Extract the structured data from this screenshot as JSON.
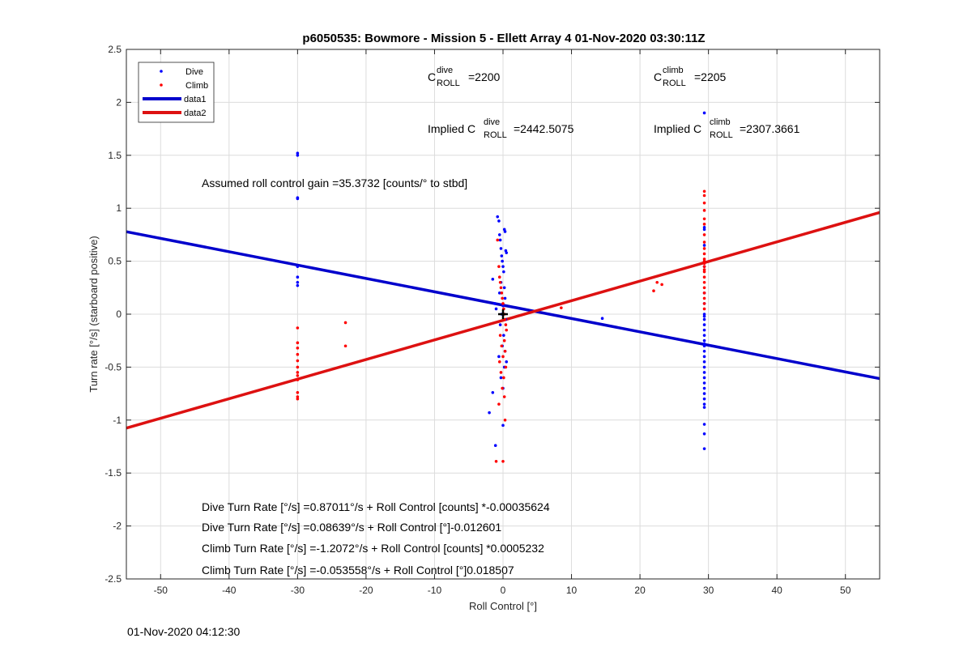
{
  "chart_data": {
    "type": "scatter",
    "title": "p6050535: Bowmore - Mission 5 - Ellett Array 4 01-Nov-2020 03:30:11Z",
    "xlabel": "Roll Control [°]",
    "ylabel": "Turn rate [°/s] (starboard positive)",
    "xlim": [
      -55,
      55
    ],
    "ylim": [
      -2.5,
      2.5
    ],
    "xticks": [
      -50,
      -40,
      -30,
      -20,
      -10,
      0,
      10,
      20,
      30,
      40,
      50
    ],
    "yticks": [
      2.5,
      2,
      1.5,
      1,
      0.5,
      0,
      -0.5,
      -1,
      -1.5,
      -2,
      -2.5
    ],
    "grid": true,
    "legend_position": "top-left",
    "legend": [
      "Dive",
      "Climb",
      "data1",
      "data2"
    ],
    "colors": {
      "dive": "#0000ff",
      "climb": "#ff0000",
      "data1": "#0000cc",
      "data2": "#dd1111"
    },
    "series": [
      {
        "name": "Dive",
        "kind": "points",
        "x": [
          -30,
          -30,
          -30,
          -30,
          -30,
          -30,
          -30,
          -30,
          -1.5,
          -1.2,
          -1.0,
          -0.8,
          -0.6,
          -0.5,
          -0.4,
          -0.3,
          -0.2,
          -0.1,
          0.0,
          0.1,
          0.2,
          0.3,
          0.4,
          0.5,
          -0.3,
          0.2,
          -0.5,
          0.3,
          0.0,
          -0.2,
          0.4,
          -0.4,
          0.1,
          -0.1,
          0.3,
          -0.6,
          0.5,
          0.2,
          -0.3,
          0.0,
          -1.5,
          -2.0,
          -1.1,
          0.0,
          14.5,
          29.4,
          29.4,
          29.4,
          29.4,
          29.4,
          29.4,
          29.4,
          29.4,
          29.4,
          29.4,
          29.4,
          29.4,
          29.4,
          29.4,
          29.4,
          29.4,
          29.4,
          29.4,
          29.4,
          29.4,
          29.4,
          29.4,
          29.4,
          29.4,
          29.4,
          29.4,
          29.4,
          29.4,
          29.4,
          29.4,
          29.4
        ],
        "y": [
          1.52,
          1.5,
          1.1,
          1.09,
          0.45,
          0.35,
          0.3,
          0.27,
          0.33,
          0.1,
          0.05,
          0.92,
          0.88,
          0.75,
          0.7,
          0.62,
          0.55,
          0.5,
          0.45,
          0.4,
          0.8,
          0.78,
          0.6,
          0.58,
          0.3,
          0.25,
          0.2,
          0.15,
          0.08,
          0.0,
          -0.05,
          -0.1,
          -0.2,
          -0.3,
          -0.35,
          -0.4,
          -0.45,
          -0.5,
          -0.6,
          -0.7,
          -0.74,
          -0.93,
          -1.24,
          -1.05,
          -0.04,
          1.9,
          0.82,
          0.8,
          0.65,
          0.45,
          0.2,
          0.0,
          -0.05,
          -0.1,
          -0.15,
          -0.2,
          -0.25,
          -0.3,
          -0.35,
          -0.4,
          -0.45,
          -0.5,
          -0.55,
          -0.6,
          -0.65,
          -0.7,
          -0.75,
          -0.8,
          -0.85,
          -0.88,
          -1.04,
          -1.13,
          -1.27,
          0.1,
          -0.02,
          -0.28
        ]
      },
      {
        "name": "Climb",
        "kind": "points",
        "x": [
          -30,
          -30,
          -30,
          -30,
          -30,
          -30,
          -30,
          -30,
          -30,
          -30,
          -30,
          -30,
          -23,
          -23,
          -0.8,
          -0.6,
          -0.5,
          -0.4,
          -0.3,
          -0.2,
          -0.1,
          0.0,
          0.1,
          0.2,
          0.3,
          0.4,
          0.5,
          -0.4,
          0.2,
          -0.2,
          0.3,
          0.0,
          -0.5,
          0.4,
          -0.3,
          0.1,
          -0.1,
          0.2,
          -0.6,
          0.3,
          -1.0,
          0.0,
          8.5,
          22.0,
          22.5,
          23.2,
          29.4,
          29.4,
          29.4,
          29.4,
          29.4,
          29.4,
          29.4,
          29.4,
          29.4,
          29.4,
          29.4,
          29.4,
          29.4,
          29.4,
          29.4,
          29.4,
          29.4,
          29.4,
          29.4,
          29.4,
          29.4,
          29.4,
          29.4
        ],
        "y": [
          -0.13,
          -0.27,
          -0.32,
          -0.38,
          -0.44,
          -0.5,
          -0.55,
          -0.58,
          -0.62,
          -0.74,
          -0.78,
          -0.8,
          -0.08,
          -0.3,
          0.7,
          0.45,
          0.35,
          0.3,
          0.25,
          0.2,
          0.15,
          0.1,
          0.05,
          0.0,
          -0.05,
          -0.1,
          -0.15,
          -0.2,
          -0.25,
          -0.3,
          -0.35,
          -0.4,
          -0.45,
          -0.5,
          -0.55,
          -0.6,
          -0.7,
          -0.78,
          -0.85,
          -1.0,
          -1.39,
          -1.39,
          0.06,
          0.22,
          0.3,
          0.28,
          1.16,
          1.12,
          1.05,
          0.98,
          0.9,
          0.85,
          0.75,
          0.68,
          0.62,
          0.57,
          0.52,
          0.48,
          0.45,
          0.4,
          0.35,
          0.3,
          0.25,
          0.2,
          0.15,
          0.1,
          0.05,
          0.5,
          0.42
        ]
      },
      {
        "name": "data1",
        "kind": "line",
        "x": [
          -55,
          55
        ],
        "y": [
          0.7786,
          -0.6083
        ]
      },
      {
        "name": "data2",
        "kind": "line",
        "x": [
          -55,
          55
        ],
        "y": [
          -1.0758,
          0.9598
        ]
      }
    ],
    "marker": {
      "x": 0,
      "y": 0,
      "symbol": "+"
    }
  },
  "annotations": {
    "c_dive_prefix": "C",
    "c_dive_sup": "dive",
    "c_dive_sub": "ROLL",
    "c_dive_value": "=2200",
    "c_climb_prefix": "C",
    "c_climb_sup": "climb",
    "c_climb_sub": "ROLL",
    "c_climb_value": "=2205",
    "implied_dive_prefix": "Implied C",
    "implied_dive_sup": "dive",
    "implied_dive_sub": "ROLL",
    "implied_dive_value": "=2442.5075",
    "implied_climb_prefix": "Implied C",
    "implied_climb_sup": "climb",
    "implied_climb_sub": "ROLL",
    "implied_climb_value": "=2307.3661",
    "gain": "Assumed roll control gain =35.3732 [counts/° to stbd]",
    "eq1": "Dive Turn Rate [°/s] =0.87011°/s + Roll Control [counts] *-0.00035624",
    "eq2": "Dive Turn Rate [°/s] =0.08639°/s + Roll Control [°]-0.012601",
    "eq3": "Climb Turn Rate [°/s] =-1.2072°/s + Roll Control [counts] *0.0005232",
    "eq4": "Climb Turn Rate [°/s] =-0.053558°/s + Roll Control [°]0.018507"
  },
  "footer": {
    "timestamp": "01-Nov-2020 04:12:30"
  }
}
